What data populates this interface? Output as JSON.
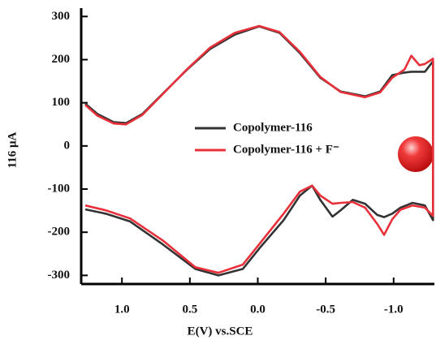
{
  "chart_data": {
    "type": "line",
    "xlabel": "E(V) vs.SCE",
    "ylabel": "116 μA",
    "xlim": [
      1.3,
      -1.3
    ],
    "ylim": [
      -320,
      310
    ],
    "xticks": [
      {
        "value": 1.0,
        "label": "1.0"
      },
      0.5,
      {
        "value": 0.0,
        "label": "0.0"
      },
      -0.5,
      {
        "value": -1.0,
        "label": "-1.0"
      }
    ],
    "yticks": [
      -300,
      -200,
      -100,
      0,
      100,
      200,
      300
    ],
    "x": [
      1.27,
      1.18,
      1.06,
      0.97,
      0.85,
      0.7,
      0.52,
      0.35,
      0.17,
      -0.01,
      -0.16,
      -0.31,
      -0.46,
      -0.61,
      -0.79,
      -0.9,
      -0.99,
      -1.08,
      -1.13,
      -1.19,
      -1.23,
      -1.29,
      -1.29,
      -1.23,
      -1.14,
      -1.05,
      -0.99,
      -0.93,
      -0.88,
      -0.79,
      -0.7,
      -0.61,
      -0.55,
      -0.46,
      -0.4,
      -0.31,
      -0.19,
      -0.01,
      0.11,
      0.29,
      0.46,
      0.7,
      0.94,
      1.12,
      1.27
    ],
    "series": [
      {
        "name": "Copolymer-116",
        "color": "#333333",
        "values": [
          98,
          74,
          55,
          53,
          74,
          121,
          177,
          225,
          258,
          277,
          262,
          215,
          158,
          126,
          115,
          126,
          164,
          170,
          172,
          172,
          172,
          196,
          -172,
          -138,
          -132,
          -143,
          -157,
          -165,
          -160,
          -134,
          -125,
          -149,
          -164,
          -125,
          -92,
          -115,
          -172,
          -238,
          -285,
          -300,
          -285,
          -228,
          -175,
          -157,
          -147
        ]
      },
      {
        "name": "Copolymer-116 + F⁻",
        "color": "#e8303a",
        "values": [
          95,
          70,
          52,
          50,
          72,
          120,
          178,
          228,
          262,
          278,
          264,
          218,
          160,
          125,
          113,
          124,
          158,
          177,
          209,
          187,
          190,
          202,
          -162,
          -143,
          -138,
          -148,
          -170,
          -206,
          -181,
          -143,
          -130,
          -132,
          -134,
          -115,
          -92,
          -106,
          -157,
          -228,
          -275,
          -294,
          -281,
          -219,
          -168,
          -149,
          -138
        ]
      }
    ],
    "legend": "center-right"
  }
}
